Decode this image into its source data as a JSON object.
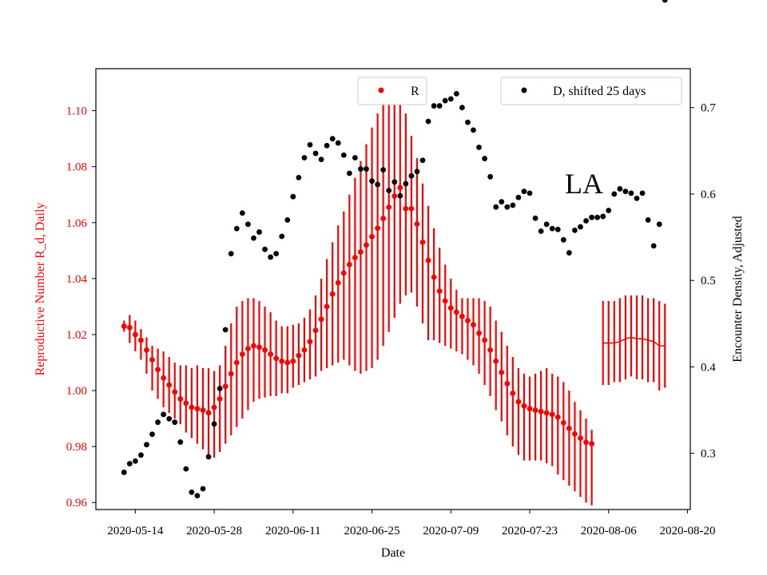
{
  "chart_data": {
    "type": "scatter",
    "title": "",
    "annotation": "LA",
    "xlabel": "Date",
    "ylabel_left": "Reproductive Number R_d, Daily",
    "ylabel_right": "Encounter Density, Adjusted",
    "x_ticks": [
      "2020-05-14",
      "2020-05-28",
      "2020-06-11",
      "2020-06-25",
      "2020-07-09",
      "2020-07-23",
      "2020-08-06",
      "2020-08-20"
    ],
    "x_tick_day_offsets": [
      0,
      14,
      28,
      42,
      56,
      70,
      84,
      98
    ],
    "x_axis_start": "2020-05-14",
    "xlim_days": [
      -7,
      98.5
    ],
    "ylim_left": [
      0.9575,
      1.115
    ],
    "ylim_right": [
      0.235,
      0.745
    ],
    "yticks_left": [
      0.96,
      0.98,
      1.0,
      1.02,
      1.04,
      1.06,
      1.08,
      1.1
    ],
    "yticks_right": [
      0.3,
      0.4,
      0.5,
      0.6,
      0.7
    ],
    "legend": [
      {
        "label": "R",
        "color": "#ff0000",
        "position": "top-center"
      },
      {
        "label": "D, shifted 25 days",
        "color": "#000000",
        "position": "top-right"
      }
    ],
    "colors": {
      "R": "#ff0000",
      "D": "#000000",
      "axis": "#000000"
    },
    "R_series": {
      "name": "R",
      "day_offsets": [
        -2,
        -1,
        0,
        1,
        2,
        3,
        4,
        5,
        6,
        7,
        8,
        9,
        10,
        11,
        12,
        13,
        14,
        15,
        16,
        17,
        18,
        19,
        20,
        21,
        22,
        23,
        24,
        25,
        26,
        27,
        28,
        29,
        30,
        31,
        32,
        33,
        34,
        35,
        36,
        37,
        38,
        39,
        40,
        41,
        42,
        43,
        44,
        45,
        46,
        47,
        48,
        49,
        50,
        51,
        52,
        53,
        54,
        55,
        56,
        57,
        58,
        59,
        60,
        61,
        62,
        63,
        64,
        65,
        66,
        67,
        68,
        69,
        70,
        71,
        72,
        73,
        74,
        75,
        76,
        77,
        78,
        79,
        80,
        81
      ],
      "values": [
        1.023,
        1.0225,
        1.02,
        1.018,
        1.0145,
        1.011,
        1.0075,
        1.0045,
        1.002,
        0.9995,
        0.997,
        0.9955,
        0.994,
        0.9935,
        0.993,
        0.992,
        0.994,
        0.997,
        1.0015,
        1.006,
        1.01,
        1.013,
        1.015,
        1.016,
        1.0155,
        1.0145,
        1.013,
        1.0115,
        1.0105,
        1.01,
        1.0105,
        1.0125,
        1.0145,
        1.0175,
        1.0215,
        1.0255,
        1.03,
        1.0345,
        1.0385,
        1.042,
        1.045,
        1.0475,
        1.0495,
        1.052,
        1.055,
        1.058,
        1.0615,
        1.0655,
        1.0695,
        1.0725,
        1.065,
        1.065,
        1.0595,
        1.053,
        1.0465,
        1.0405,
        1.0355,
        1.032,
        1.0295,
        1.028,
        1.0265,
        1.025,
        1.0235,
        1.0205,
        1.018,
        1.0145,
        1.0105,
        1.0065,
        1.0025,
        0.999,
        0.996,
        0.9945,
        0.9935,
        0.993,
        0.9925,
        0.992,
        0.9915,
        0.9905,
        0.9885,
        0.9865,
        0.9845,
        0.983,
        0.9815,
        0.981
      ],
      "error_low": [
        1.021,
        1.017,
        1.014,
        1.011,
        1.006,
        1.0,
        0.997,
        0.994,
        0.992,
        0.99,
        0.988,
        0.985,
        0.983,
        0.981,
        0.979,
        0.977,
        0.976,
        0.978,
        0.981,
        0.984,
        0.987,
        0.99,
        0.993,
        0.996,
        0.997,
        0.9975,
        0.998,
        0.998,
        0.999,
        0.999,
        1.001,
        1.002,
        1.003,
        1.004,
        1.005,
        1.007,
        1.008,
        1.009,
        1.01,
        1.011,
        1.009,
        1.007,
        1.006,
        1.007,
        1.008,
        1.011,
        1.016,
        1.021,
        1.026,
        1.031,
        1.034,
        1.035,
        1.03,
        1.024,
        1.018,
        1.018,
        1.017,
        1.016,
        1.015,
        1.014,
        1.013,
        1.011,
        1.009,
        1.006,
        1.002,
        0.998,
        0.993,
        0.989,
        0.984,
        0.98,
        0.977,
        0.975,
        0.975,
        0.975,
        0.975,
        0.974,
        0.973,
        0.97,
        0.968,
        0.966,
        0.964,
        0.962,
        0.96,
        0.959
      ],
      "error_high": [
        1.025,
        1.027,
        1.025,
        1.022,
        1.019,
        1.016,
        1.015,
        1.014,
        1.012,
        1.01,
        1.009,
        1.009,
        1.008,
        1.009,
        1.008,
        1.008,
        1.007,
        1.009,
        1.016,
        1.024,
        1.03,
        1.032,
        1.033,
        1.033,
        1.032,
        1.03,
        1.028,
        1.025,
        1.023,
        1.023,
        1.0235,
        1.024,
        1.026,
        1.029,
        1.034,
        1.04,
        1.047,
        1.053,
        1.059,
        1.064,
        1.07,
        1.076,
        1.082,
        1.088,
        1.094,
        1.099,
        1.104,
        1.107,
        1.107,
        1.104,
        1.099,
        1.091,
        1.083,
        1.074,
        1.066,
        1.058,
        1.051,
        1.045,
        1.04,
        1.036,
        1.033,
        1.033,
        1.033,
        1.033,
        1.032,
        1.03,
        1.025,
        1.021,
        1.016,
        1.012,
        1.008,
        1.006,
        1.005,
        1.006,
        1.007,
        1.008,
        1.006,
        1.005,
        1.003,
        1.0,
        0.996,
        0.993,
        0.99,
        0.986
      ]
    },
    "R_tail_series": {
      "name": "R (tail)",
      "day_offsets": [
        83,
        84,
        85,
        86,
        87,
        88,
        89,
        90,
        91,
        92,
        93,
        94
      ],
      "values": [
        1.017,
        1.017,
        1.017,
        1.0175,
        1.0185,
        1.019,
        1.0185,
        1.0185,
        1.018,
        1.0175,
        1.016,
        1.016
      ],
      "error_low": [
        1.002,
        1.002,
        1.003,
        1.003,
        1.004,
        1.005,
        1.004,
        1.004,
        1.003,
        1.003,
        1.0,
        1.001
      ],
      "error_high": [
        1.032,
        1.032,
        1.032,
        1.033,
        1.034,
        1.034,
        1.034,
        1.034,
        1.033,
        1.033,
        1.032,
        1.031
      ]
    },
    "D_series": {
      "name": "D, shifted 25 days",
      "day_offsets": [
        -2,
        -1,
        0,
        1,
        2,
        3,
        4,
        5,
        6,
        7,
        8,
        9,
        10,
        11,
        12,
        13,
        14,
        15,
        16,
        17,
        18,
        19,
        20,
        21,
        22,
        23,
        24,
        25,
        26,
        27,
        28,
        29,
        30,
        31,
        32,
        33,
        34,
        35,
        36,
        37,
        38,
        39,
        40,
        41,
        42,
        43,
        44,
        45,
        46,
        47,
        48,
        49,
        50,
        51,
        52,
        53,
        54,
        55,
        56,
        57,
        58,
        59,
        60,
        61,
        62,
        63,
        64,
        65,
        66,
        67,
        68,
        69,
        70,
        71,
        72,
        73,
        74,
        75,
        76,
        77,
        78,
        79,
        80,
        81,
        82,
        83,
        84,
        85,
        86,
        87,
        88,
        89,
        90,
        91,
        92,
        93,
        94
      ],
      "values": [
        0.278,
        0.288,
        0.291,
        0.298,
        0.31,
        0.322,
        0.336,
        0.345,
        0.34,
        0.336,
        0.313,
        0.282,
        0.255,
        0.251,
        0.259,
        0.296,
        0.334,
        0.375,
        0.443,
        0.531,
        0.56,
        0.578,
        0.565,
        0.549,
        0.556,
        0.536,
        0.527,
        0.531,
        0.551,
        0.57,
        0.597,
        0.619,
        0.642,
        0.657,
        0.647,
        0.64,
        0.656,
        0.664,
        0.659,
        0.645,
        0.624,
        0.642,
        0.629,
        0.629,
        0.615,
        0.611,
        0.628,
        0.604,
        0.614,
        0.598,
        0.612,
        0.621,
        0.626,
        0.639,
        0.684,
        0.702,
        0.702,
        0.708,
        0.71,
        0.716,
        0.7,
        0.683,
        0.674,
        0.654,
        0.641,
        0.62,
        0.585,
        0.591,
        0.585,
        0.587,
        0.596,
        0.603,
        0.601,
        0.572,
        0.557,
        0.565,
        0.56,
        0.559,
        0.547,
        0.532,
        0.558,
        0.562,
        0.569,
        0.573,
        0.573,
        0.574,
        0.581,
        0.6,
        0.606,
        0.603,
        0.601,
        0.595,
        0.601,
        0.57,
        0.54,
        0.565
      ]
    }
  }
}
